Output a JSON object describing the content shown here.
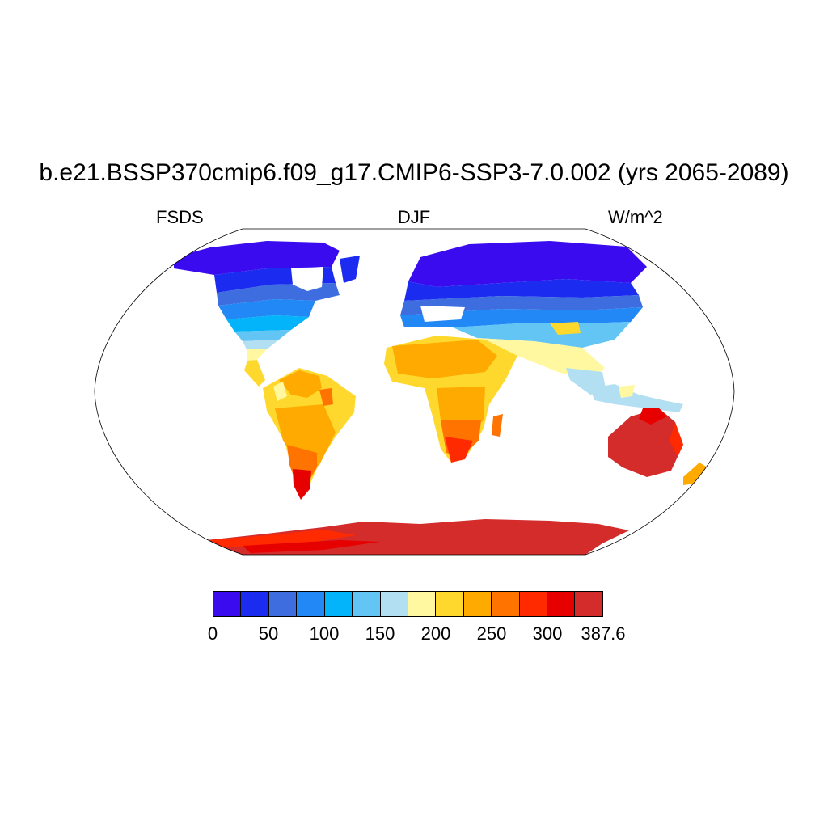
{
  "title": "b.e21.BSSP370cmip6.f09_g17.CMIP6-SSP3-7.0.002 (yrs 2065-2089)",
  "subtitle_left": "FSDS",
  "subtitle_center": "DJF",
  "subtitle_right": "W/m^2",
  "map": {
    "projection": "Robinson",
    "variable": "FSDS",
    "season": "DJF",
    "units": "W/m^2",
    "land_only": true
  },
  "colorbar": {
    "colors": [
      "#3b0bf0",
      "#1b2bf0",
      "#3d6ddf",
      "#2188f5",
      "#04b4fb",
      "#62c5f3",
      "#b3dff3",
      "#fff8a0",
      "#ffd82e",
      "#ffaa00",
      "#ff7400",
      "#ff2a00",
      "#e60000",
      "#d42b2b"
    ],
    "tick_labels": [
      "0",
      "50",
      "100",
      "150",
      "200",
      "250",
      "300",
      "387.6"
    ]
  },
  "colors": {
    "coast": "#000000",
    "background": "#ffffff"
  }
}
